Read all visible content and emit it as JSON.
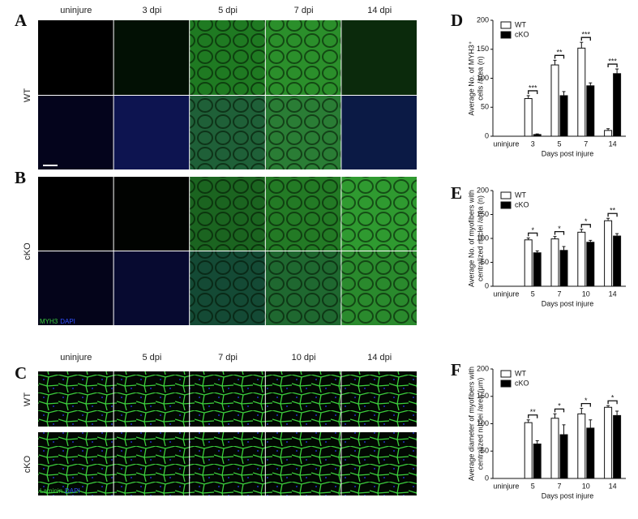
{
  "panel_labels": [
    "A",
    "B",
    "C",
    "D",
    "E",
    "F"
  ],
  "images": {
    "myh3": {
      "columns": [
        "uninjure",
        "3 dpi",
        "5 dpi",
        "7 dpi",
        "14 dpi"
      ],
      "rows": [
        "WT",
        "cKO"
      ],
      "stain": [
        "MYH3",
        "DAPI"
      ]
    },
    "laminin": {
      "columns": [
        "uninjure",
        "5 dpi",
        "7 dpi",
        "10 dpi",
        "14 dpi"
      ],
      "rows": [
        "WT",
        "cKO"
      ],
      "stain": [
        "Laminin",
        "DAPI"
      ]
    }
  },
  "chart_data": [
    {
      "type": "bar",
      "categories": [
        "uninjure",
        "3",
        "5",
        "7",
        "14"
      ],
      "series": [
        {
          "name": "WT",
          "color": "#ffffff",
          "values": [
            0,
            65,
            123,
            152,
            10
          ],
          "errors": [
            0,
            5,
            8,
            10,
            3
          ]
        },
        {
          "name": "cKO",
          "color": "#000000",
          "values": [
            0,
            3,
            70,
            87,
            108
          ],
          "errors": [
            0,
            1,
            7,
            5,
            8
          ]
        }
      ],
      "ylim": [
        0,
        200
      ],
      "yticks": [
        0,
        50,
        100,
        150,
        200
      ],
      "y_label": [
        "Average No. of MYH3⁺",
        "cells /area (n)"
      ],
      "x_label": "Days post injure",
      "annotations": [
        null,
        "***",
        "**",
        "***",
        "***"
      ]
    },
    {
      "type": "bar",
      "categories": [
        "uninjure",
        "5",
        "7",
        "10",
        "14"
      ],
      "series": [
        {
          "name": "WT",
          "color": "#ffffff",
          "values": [
            0,
            97,
            99,
            113,
            137
          ],
          "errors": [
            0,
            4,
            5,
            6,
            5
          ]
        },
        {
          "name": "cKO",
          "color": "#000000",
          "values": [
            0,
            70,
            75,
            92,
            105
          ],
          "errors": [
            0,
            4,
            8,
            4,
            5
          ]
        }
      ],
      "ylim": [
        0,
        200
      ],
      "yticks": [
        0,
        50,
        100,
        150,
        200
      ],
      "y_label": [
        "Average No. of myofibers with",
        "centralized nuclei /area (n)"
      ],
      "x_label": "Days post injure",
      "annotations": [
        null,
        "*",
        "*",
        "*",
        "**"
      ]
    },
    {
      "type": "bar",
      "categories": [
        "uninjure",
        "5",
        "7",
        "10",
        "14"
      ],
      "series": [
        {
          "name": "WT",
          "color": "#ffffff",
          "values": [
            0,
            102,
            110,
            118,
            130
          ],
          "errors": [
            0,
            5,
            8,
            10,
            3
          ]
        },
        {
          "name": "cKO",
          "color": "#000000",
          "values": [
            0,
            63,
            80,
            92,
            115
          ],
          "errors": [
            0,
            6,
            18,
            15,
            8
          ]
        }
      ],
      "ylim": [
        0,
        200
      ],
      "yticks": [
        0,
        50,
        100,
        150,
        200
      ],
      "y_label": [
        "Average diameter of myofibers with",
        "centralized nuclei /area (μm)"
      ],
      "x_label": "Days post injure",
      "annotations": [
        null,
        "**",
        "*",
        "*",
        "*"
      ]
    }
  ]
}
